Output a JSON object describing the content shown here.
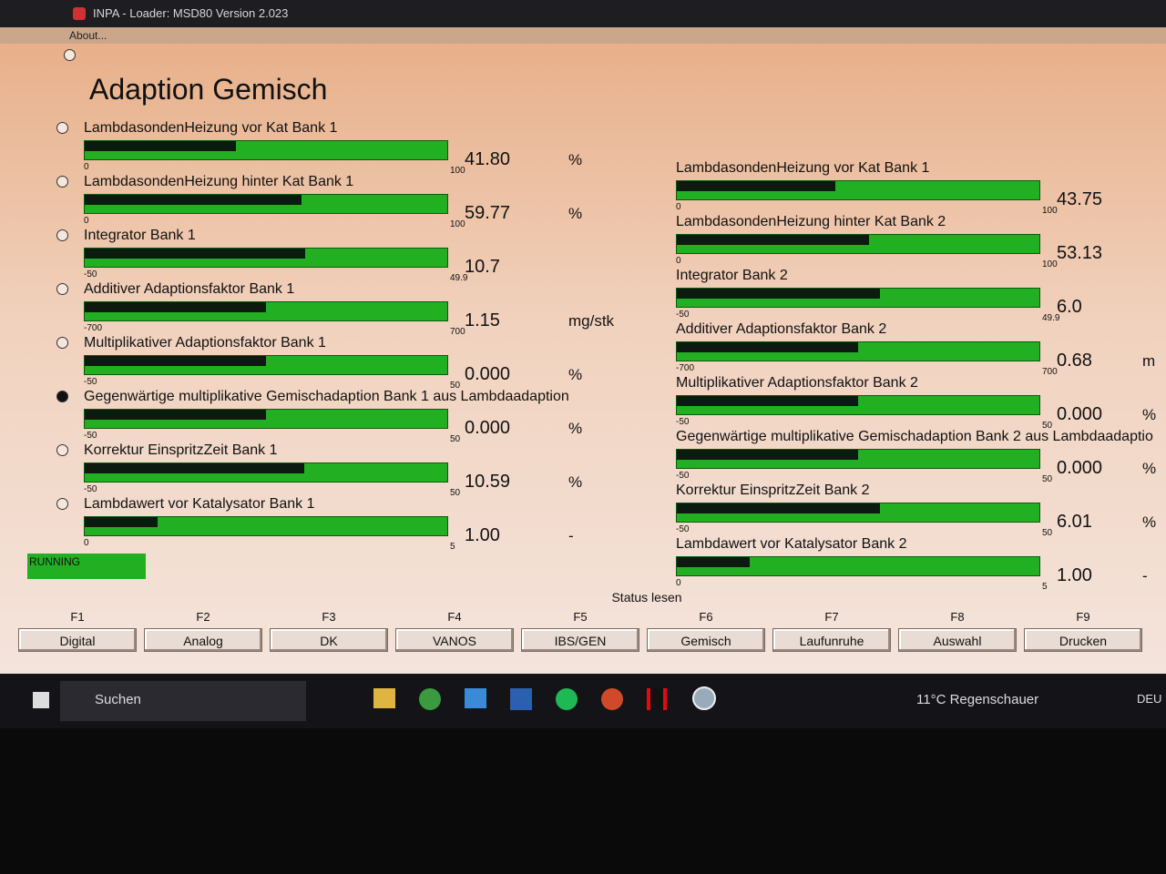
{
  "window": {
    "title": "INPA - Loader: MSD80 Version 2.023",
    "menu": "About..."
  },
  "header": {
    "title": "Adaption Gemisch"
  },
  "panels": [
    {
      "selected_item": 5,
      "items": [
        {
          "label": "LambdasondenHeizung vor Kat Bank 1",
          "min": 0,
          "max": 100,
          "value": 41.8,
          "value_label": "41.80",
          "unit": "%"
        },
        {
          "label": "LambdasondenHeizung hinter Kat Bank 1",
          "min": 0,
          "max": 100,
          "value": 59.77,
          "unit": "%"
        },
        {
          "label": "Integrator Bank 1",
          "min": -50,
          "max": 49.9,
          "value": 10.7
        },
        {
          "label": "Additiver Adaptionsfaktor Bank 1",
          "min": -700,
          "max": 700,
          "value": 1.15,
          "unit": "mg/stk"
        },
        {
          "label": "Multiplikativer Adaptionsfaktor Bank 1",
          "min": -50,
          "max": 50,
          "value": 0,
          "value_label": "0.000",
          "unit": "%"
        },
        {
          "label": "Gegenwärtige multiplikative Gemischadaption Bank 1 aus Lambdaadaption",
          "min": -50,
          "max": 50,
          "value": 0,
          "value_label": "0.000",
          "unit": "%"
        },
        {
          "label": "Korrektur EinspritzZeit Bank 1",
          "min": -50,
          "max": 50,
          "value": 10.59,
          "unit": "%"
        },
        {
          "label": "Lambdawert vor Katalysator Bank 1",
          "min": 0,
          "max": 5,
          "value": 1,
          "value_label": "1.00",
          "unit": "-"
        }
      ]
    },
    {
      "items": [
        {
          "label": "LambdasondenHeizung vor Kat Bank 1",
          "min": 0,
          "max": 100,
          "value": 43.75
        },
        {
          "label": "LambdasondenHeizung hinter Kat Bank 2",
          "min": 0,
          "max": 100,
          "value": 53.13
        },
        {
          "label": "Integrator Bank 2",
          "min": -50,
          "max": 49.9,
          "value": 6,
          "value_label": "6.0"
        },
        {
          "label": "Additiver Adaptionsfaktor Bank 2",
          "min": -700,
          "max": 700,
          "value": 0.68,
          "unit": "m"
        },
        {
          "label": "Multiplikativer Adaptionsfaktor Bank 2",
          "min": -50,
          "max": 50,
          "value": 0,
          "value_label": "0.000",
          "unit": "%"
        },
        {
          "label": "Gegenwärtige multiplikative Gemischadaption Bank 2 aus Lambdaadaptio",
          "min": -50,
          "max": 50,
          "value": 0,
          "value_label": "0.000",
          "unit": "%"
        },
        {
          "label": "Korrektur EinspritzZeit Bank 2",
          "min": -50,
          "max": 50,
          "value": 6.01,
          "unit": "%"
        },
        {
          "label": "Lambdawert vor Katalysator Bank 2",
          "min": 0,
          "max": 5,
          "value": 1,
          "value_label": "1.00",
          "unit": "-"
        }
      ]
    }
  ],
  "status": "RUNNING",
  "status_caption": "Status lesen",
  "function_keys": [
    {
      "key": "F1",
      "label": "Digital"
    },
    {
      "key": "F2",
      "label": "Analog"
    },
    {
      "key": "F3",
      "label": "DK"
    },
    {
      "key": "F4",
      "label": "VANOS"
    },
    {
      "key": "F5",
      "label": "IBS/GEN"
    },
    {
      "key": "F6",
      "label": "Gemisch"
    },
    {
      "key": "F7",
      "label": "Laufunruhe"
    },
    {
      "key": "F8",
      "label": "Auswahl"
    },
    {
      "key": "F9",
      "label": "Drucken"
    }
  ],
  "taskbar": {
    "search": "Suchen",
    "weather": "11°C Regenschauer",
    "language": "DEU"
  }
}
